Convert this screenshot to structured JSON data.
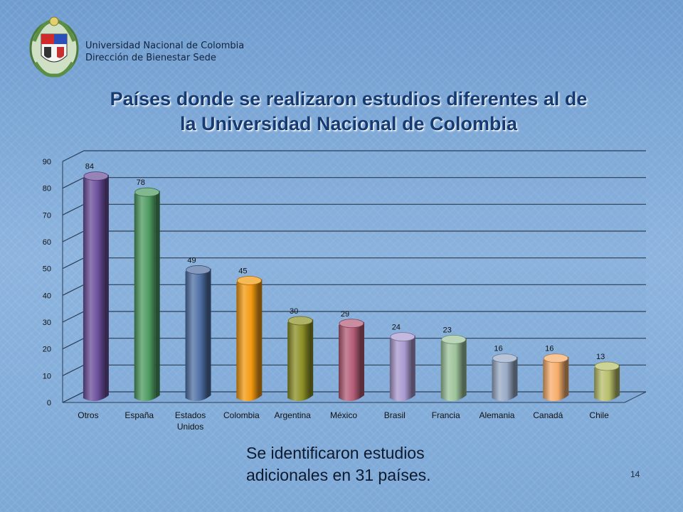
{
  "header": {
    "institution": "Universidad Nacional de Colombia",
    "department": "Dirección de Bienestar Sede"
  },
  "title_line1": "Países donde se realizaron estudios diferentes al de",
  "title_line2": "la Universidad Nacional de Colombia",
  "note_line1": "Se identificaron estudios",
  "note_line2": "adicionales en 31 países.",
  "page_number": "14",
  "chart_data": {
    "type": "bar",
    "categories": [
      "Otros",
      "España",
      "Estados Unidos",
      "Colombia",
      "Argentina",
      "México",
      "Brasil",
      "Francia",
      "Alemania",
      "Canadá",
      "Chile"
    ],
    "category_lines": [
      [
        "Otros"
      ],
      [
        "España"
      ],
      [
        "Estados",
        "Unidos"
      ],
      [
        "Colombia"
      ],
      [
        "Argentina"
      ],
      [
        "México"
      ],
      [
        "Brasil"
      ],
      [
        "Francia"
      ],
      [
        "Alemania"
      ],
      [
        "Canadá"
      ],
      [
        "Chile"
      ]
    ],
    "values": [
      84,
      78,
      49,
      45,
      30,
      29,
      24,
      23,
      16,
      16,
      13
    ],
    "ylim": [
      0,
      90
    ],
    "yticks": [
      0,
      10,
      20,
      30,
      40,
      50,
      60,
      70,
      80,
      90
    ],
    "grid": true,
    "colors": [
      "#6a4e9a",
      "#4d9a60",
      "#4f70a4",
      "#f39a10",
      "#8c8f26",
      "#b35c76",
      "#a999cf",
      "#9dc39b",
      "#98aac6",
      "#f6ac6a",
      "#b7be6a"
    ]
  }
}
